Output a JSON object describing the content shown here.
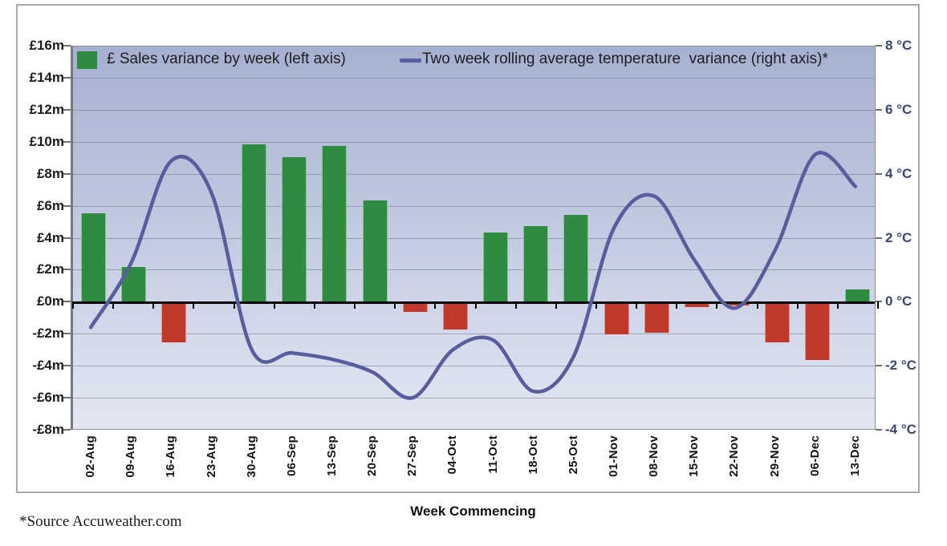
{
  "legend": {
    "bar_label": "£ Sales variance by week (left axis)",
    "line_label": "Two week rolling average temperature  variance (right axis)*"
  },
  "x_axis_title": "Week Commencing",
  "source_note": "*Source Accuweather.com",
  "colors": {
    "bar_positive": "#2e8c41",
    "bar_negative": "#c0392b",
    "line": "#585e9d",
    "left_axis_text": "#1c1c1c",
    "right_axis_text": "#3b4676",
    "plot_bg_top": "#a6b0d1",
    "plot_bg_mid": "#ccd3e6",
    "plot_bg_bottom": "#e4e8f3",
    "frame_border": "#a9a9a9",
    "axis_black": "#000000"
  },
  "chart_data": {
    "type": "bar+line combo",
    "categories": [
      "02-Aug",
      "09-Aug",
      "16-Aug",
      "23-Aug",
      "30-Aug",
      "06-Sep",
      "13-Sep",
      "20-Sep",
      "27-Sep",
      "04-Oct",
      "11-Oct",
      "18-Oct",
      "25-Oct",
      "01-Nov",
      "08-Nov",
      "15-Nov",
      "22-Nov",
      "29-Nov",
      "06-Dec",
      "13-Dec"
    ],
    "series": [
      {
        "name": "£ Sales variance by week (left axis)",
        "type": "bar",
        "axis": "left",
        "unit": "£m",
        "values": [
          5.6,
          2.2,
          -2.5,
          -0.1,
          9.9,
          9.1,
          9.8,
          6.4,
          -0.6,
          -1.7,
          4.4,
          4.8,
          5.5,
          -2.0,
          -1.9,
          -0.3,
          -0.2,
          -2.5,
          -3.6,
          0.8
        ]
      },
      {
        "name": "Two week rolling average temperature variance (right axis)",
        "type": "line",
        "axis": "right",
        "unit": "°C",
        "values": [
          -0.8,
          1.2,
          4.4,
          3.4,
          -1.5,
          -1.6,
          -1.8,
          -2.2,
          -3.0,
          -1.5,
          -1.2,
          -2.8,
          -1.7,
          2.3,
          3.3,
          1.3,
          -0.2,
          1.6,
          4.6,
          3.6
        ]
      }
    ],
    "left_axis": {
      "unit": "£m",
      "min": -8,
      "max": 16,
      "step": 2,
      "tick_labels": [
        "£16m",
        "£14m",
        "£12m",
        "£10m",
        "£8m",
        "£6m",
        "£4m",
        "£2m",
        "£0m",
        "-£2m",
        "-£4m",
        "-£6m",
        "-£8m"
      ]
    },
    "right_axis": {
      "unit": "°C",
      "min": -4,
      "max": 8,
      "step": 2,
      "tick_labels": [
        "8 °C",
        "6 °C",
        "4 °C",
        "2 °C",
        "0 °C",
        "-2 °C",
        "-4 °C"
      ]
    },
    "xlabel": "Week Commencing",
    "grid": true,
    "legend_position": "top-inside"
  }
}
